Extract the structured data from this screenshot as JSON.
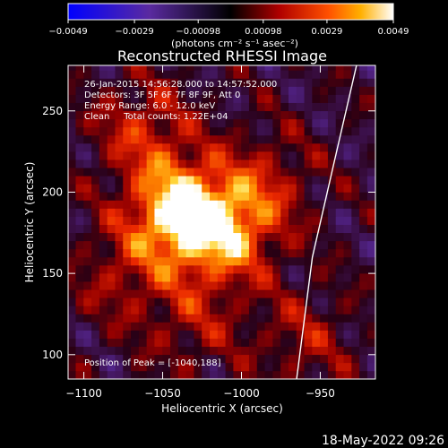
{
  "chart_data": {
    "type": "heatmap",
    "title": "Reconstructed RHESSI Image",
    "xlabel": "Heliocentric X (arcsec)",
    "ylabel": "Heliocentric Y (arcsec)",
    "xlim": [
      -1110,
      -915
    ],
    "ylim": [
      85,
      278
    ],
    "x_ticks": [
      -1100,
      -1050,
      -1000,
      -950
    ],
    "y_ticks": [
      100,
      150,
      200,
      250
    ],
    "colorbar": {
      "min": -0.0049,
      "max": 0.0049,
      "ticks": [
        -0.0049,
        -0.0029,
        -0.00098,
        0.00098,
        0.0029,
        0.0049
      ],
      "tick_labels": [
        "−0.0049",
        "−0.0029",
        "−0.00098",
        "0.00098",
        "0.0029",
        "0.0049"
      ],
      "label": "(photons cm⁻² s⁻¹ asec⁻²)"
    },
    "annotations": [
      "26-Jan-2015 14:56:28.000 to 14:57:52.000",
      "Detectors: 3F 5F 6F 7F 8F 9F, Att 0",
      "Energy Range: 6.0 - 12.0 keV",
      "Clean     Total counts: 1.22E+04"
    ],
    "peak": {
      "label": "Position of Peak = [-1040,188]",
      "x": -1040,
      "y": 188
    },
    "sources": [
      {
        "x": -1040,
        "y": 188,
        "value": 0.0049
      },
      {
        "x": -1010,
        "y": 175,
        "value": 0.0036
      },
      {
        "x": -1062,
        "y": 238,
        "value": 0.0022
      },
      {
        "x": -985,
        "y": 205,
        "value": 0.0018
      },
      {
        "x": -1075,
        "y": 150,
        "value": 0.0016
      },
      {
        "x": -1030,
        "y": 120,
        "value": 0.0015
      },
      {
        "x": -960,
        "y": 110,
        "value": 0.0015
      }
    ],
    "limb": [
      [
        -965,
        85
      ],
      [
        -955,
        160
      ],
      [
        -942,
        215
      ],
      [
        -927,
        278
      ]
    ],
    "grid": false
  },
  "timestamp": "18-May-2022 09:26"
}
